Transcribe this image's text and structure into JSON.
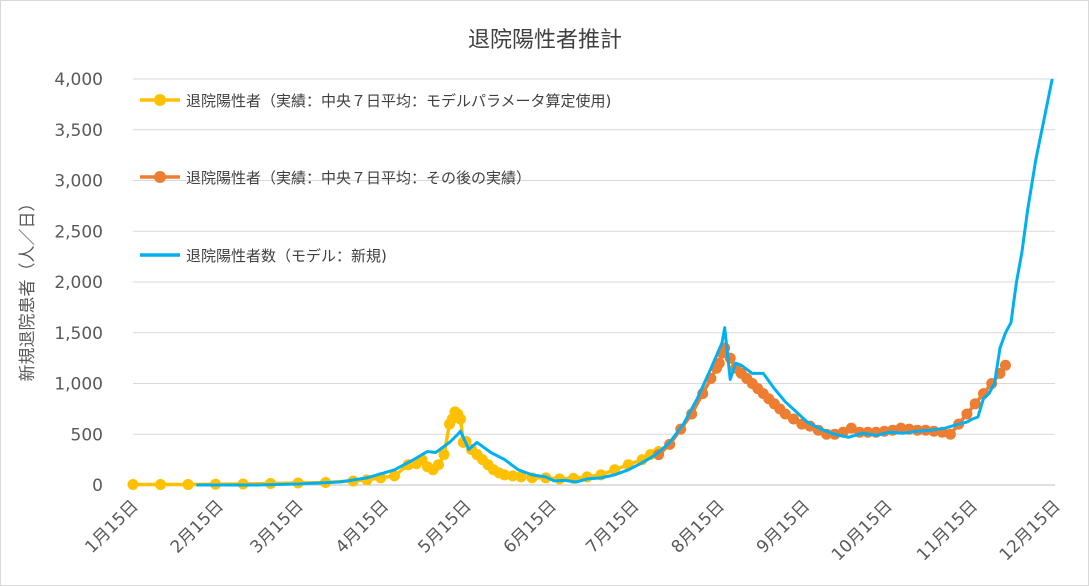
{
  "chart_data": {
    "type": "line",
    "title": "退院陽性者推計",
    "xlabel": "",
    "ylabel": "新規退院患者（人／日）",
    "ylim": [
      0,
      4000
    ],
    "yticks": [
      0,
      500,
      1000,
      1500,
      2000,
      2500,
      3000,
      3500,
      4000
    ],
    "ytick_labels": [
      "0",
      "500",
      "1,000",
      "1,500",
      "2,000",
      "2,500",
      "3,000",
      "3,500",
      "4,000"
    ],
    "x_unit": "day of year (1 = Jan 1)",
    "xlim": [
      15,
      349
    ],
    "xticks": [
      15,
      46,
      75,
      106,
      136,
      167,
      197,
      228,
      259,
      289,
      320,
      350
    ],
    "xtick_labels": [
      "1月15日",
      "2月15日",
      "3月15日",
      "4月15日",
      "5月15日",
      "6月15日",
      "7月15日",
      "8月15日",
      "9月15日",
      "10月15日",
      "11月15日",
      "12月15日"
    ],
    "grid": true,
    "legend_position": "top-left",
    "series": [
      {
        "name": "退院陽性者（実績：中央７日平均：モデルパラメータ算定使用)",
        "color": "#FFC000",
        "marker": "circle",
        "x": [
          15,
          25,
          35,
          45,
          55,
          65,
          75,
          85,
          95,
          100,
          105,
          110,
          115,
          118,
          120,
          122,
          124,
          126,
          128,
          130,
          131,
          132,
          133,
          134,
          135,
          136,
          138,
          140,
          142,
          144,
          146,
          148,
          150,
          153,
          156,
          160,
          165,
          170,
          175,
          180,
          185,
          190,
          195,
          200,
          203,
          206
        ],
        "y": [
          5,
          5,
          5,
          8,
          10,
          15,
          20,
          25,
          40,
          50,
          70,
          90,
          200,
          210,
          250,
          180,
          150,
          200,
          300,
          600,
          650,
          720,
          700,
          650,
          420,
          430,
          350,
          300,
          250,
          200,
          150,
          120,
          100,
          90,
          80,
          70,
          70,
          60,
          65,
          80,
          100,
          150,
          200,
          250,
          300,
          330
        ]
      },
      {
        "name": "退院陽性者（実績：中央７日平均：その後の実績）",
        "color": "#ED7D31",
        "marker": "circle",
        "x": [
          206,
          210,
          214,
          218,
          222,
          225,
          227,
          228,
          229,
          230,
          232,
          234,
          236,
          238,
          240,
          242,
          244,
          246,
          248,
          250,
          252,
          255,
          258,
          261,
          264,
          267,
          270,
          273,
          276,
          279,
          282,
          285,
          288,
          291,
          294,
          297,
          300,
          303,
          306,
          309,
          312,
          315,
          318,
          321,
          324,
          327,
          330,
          332
        ],
        "y": [
          300,
          400,
          550,
          700,
          900,
          1050,
          1150,
          1200,
          1300,
          1350,
          1250,
          1150,
          1100,
          1050,
          1000,
          950,
          900,
          850,
          800,
          750,
          700,
          650,
          600,
          580,
          540,
          500,
          500,
          520,
          560,
          520,
          520,
          520,
          530,
          540,
          560,
          550,
          540,
          540,
          530,
          520,
          500,
          600,
          700,
          800,
          900,
          1000,
          1100,
          1180
        ]
      },
      {
        "name": "退院陽性者数（モデル：新規)",
        "color": "#00B0F0",
        "marker": "none",
        "x": [
          38,
          60,
          75,
          90,
          100,
          110,
          117,
          120,
          122,
          125,
          128,
          130,
          133,
          134,
          137,
          140,
          145,
          150,
          155,
          160,
          165,
          168,
          172,
          176,
          180,
          185,
          190,
          195,
          200,
          205,
          210,
          215,
          220,
          225,
          229,
          230,
          232,
          234,
          236,
          240,
          244,
          248,
          252,
          256,
          260,
          265,
          270,
          275,
          280,
          285,
          290,
          295,
          300,
          305,
          310,
          315,
          318,
          320,
          322,
          324,
          326,
          328,
          330,
          332,
          334,
          335,
          336,
          338,
          340,
          343,
          346,
          349
        ],
        "y": [
          0,
          0,
          10,
          30,
          70,
          150,
          250,
          300,
          330,
          320,
          380,
          420,
          500,
          530,
          350,
          420,
          320,
          250,
          150,
          100,
          80,
          40,
          45,
          30,
          60,
          70,
          100,
          150,
          220,
          300,
          420,
          600,
          850,
          1150,
          1400,
          1550,
          1040,
          1200,
          1180,
          1100,
          1100,
          950,
          820,
          720,
          620,
          550,
          500,
          470,
          510,
          490,
          520,
          510,
          530,
          540,
          560,
          600,
          620,
          650,
          670,
          850,
          900,
          1000,
          1350,
          1500,
          1600,
          1800,
          2000,
          2300,
          2700,
          3200,
          3600,
          4000
        ]
      }
    ]
  }
}
